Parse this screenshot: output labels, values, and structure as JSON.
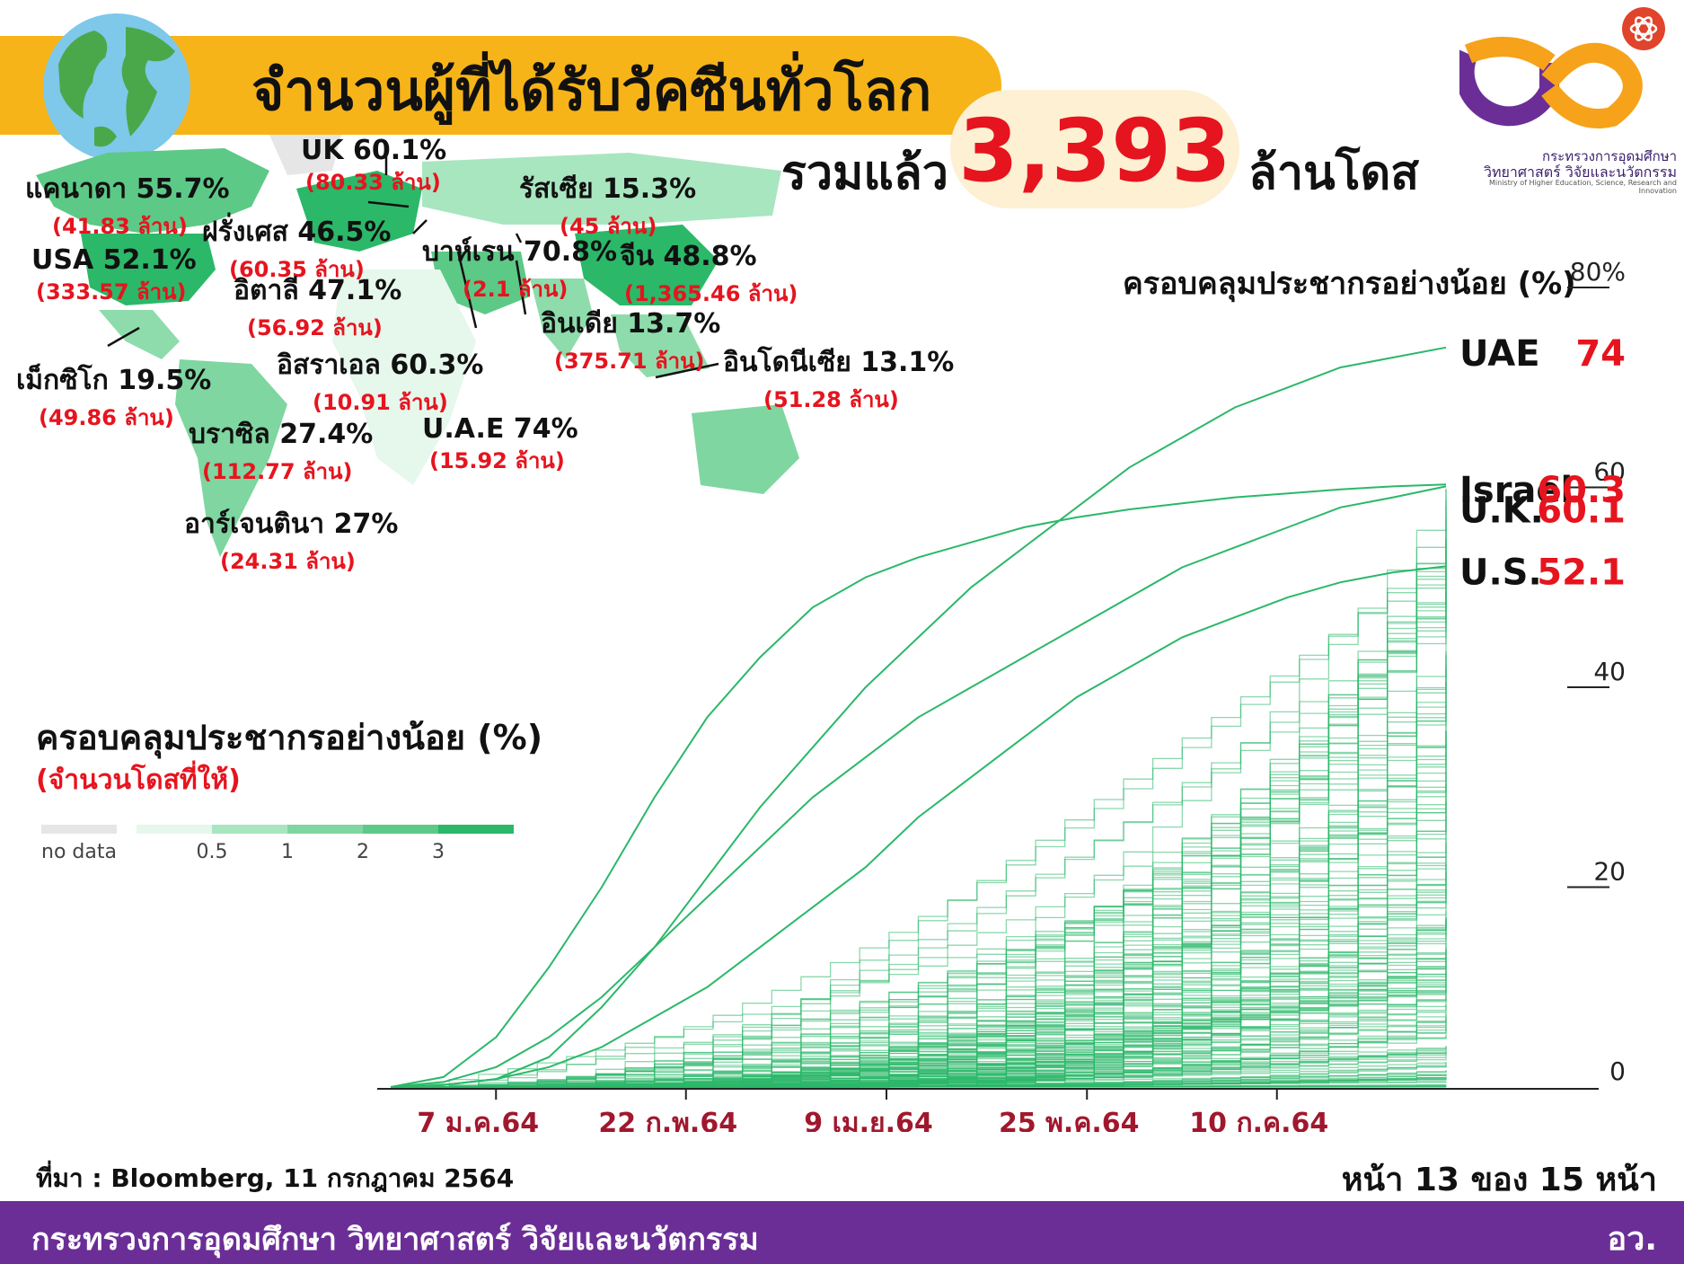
{
  "header": {
    "title": "จำนวนผู้ที่ได้รับวัคซีนทั่วโลก",
    "total_label": "รวมแล้ว",
    "total_value": "3,393",
    "total_unit": "ล้านโดส"
  },
  "logo": {
    "line1": "กระทรวงการอุดมศึกษา",
    "line2": "วิทยาศาสตร์ วิจัยและนวัตกรรม",
    "line3": "Ministry of Higher Education, Science, Research and Innovation"
  },
  "colors": {
    "banner": "#f7b418",
    "accent_red": "#e6141e",
    "line_green": "#2bb869",
    "footer_purple": "#6b2e97",
    "axis_date": "#a0182d"
  },
  "map_callouts": [
    {
      "name": "UK 60.1%",
      "doses": "(80.33 ล้าน)"
    },
    {
      "name": "แคนาดา 55.7%",
      "doses": "(41.83 ล้าน)"
    },
    {
      "name": "รัสเซีย 15.3%",
      "doses": "(45 ล้าน)"
    },
    {
      "name": "ฝรั่งเศส 46.5%",
      "doses": "(60.35 ล้าน)"
    },
    {
      "name": "USA 52.1%",
      "doses": "(333.57 ล้าน)"
    },
    {
      "name": "บาห์เรน 70.8%",
      "doses": "(2.1 ล้าน)"
    },
    {
      "name": "จีน 48.8%",
      "doses": "(1,365.46 ล้าน)"
    },
    {
      "name": "อิตาลี 47.1%",
      "doses": "(56.92 ล้าน)"
    },
    {
      "name": "อินเดีย 13.7%",
      "doses": "(375.71 ล้าน)"
    },
    {
      "name": "อิสราเอล 60.3%",
      "doses": "(10.91 ล้าน)"
    },
    {
      "name": "อินโดนีเซีย 13.1%",
      "doses": "(51.28 ล้าน)"
    },
    {
      "name": "เม็กซิโก 19.5%",
      "doses": "(49.86 ล้าน)"
    },
    {
      "name": "บราซิล 27.4%",
      "doses": "(112.77 ล้าน)"
    },
    {
      "name": "U.A.E 74%",
      "doses": "(15.92 ล้าน)"
    },
    {
      "name": "อาร์เจนตินา 27%",
      "doses": "(24.31 ล้าน)"
    }
  ],
  "legend": {
    "title": "ครอบคลุมประชากรอย่างน้อย (%)",
    "subtitle": "(จำนวนโดสที่ให้)",
    "no_data": "no data",
    "ticks": [
      "0.5",
      "1",
      "2",
      "3"
    ]
  },
  "coverage_label": "ครอบคลุมประชากรอย่างน้อย (%)",
  "chart_data": {
    "type": "line",
    "title": "ครอบคลุมประชากรอย่างน้อย (%)",
    "x_tick_labels": [
      "7 ม.ค.64",
      "22 ก.พ.64",
      "9 เม.ย.64",
      "25 พ.ค.64",
      "10 ก.ค.64"
    ],
    "y_tick_labels": [
      "80%",
      "60",
      "40",
      "20",
      "0"
    ],
    "ylim": [
      0,
      80
    ],
    "series": [
      {
        "name": "UAE",
        "end_value": "74",
        "values": [
          0,
          0.2,
          0.8,
          3,
          8,
          14,
          21,
          28,
          34,
          40,
          45,
          50,
          54,
          58,
          62,
          65,
          68,
          70,
          72,
          73,
          74
        ]
      },
      {
        "name": "Israel",
        "end_value": "60.3",
        "values": [
          0,
          1,
          5,
          12,
          20,
          29,
          37,
          43,
          48,
          51,
          53,
          54.5,
          56,
          57,
          57.8,
          58.4,
          59,
          59.4,
          59.8,
          60.1,
          60.3
        ]
      },
      {
        "name": "U.K.",
        "end_value": "60.1",
        "values": [
          0,
          0.5,
          2,
          5,
          9,
          14,
          19,
          24,
          29,
          33,
          37,
          40,
          43,
          46,
          49,
          52,
          54,
          56,
          58,
          59,
          60.1
        ]
      },
      {
        "name": "U.S.",
        "end_value": "52.1",
        "values": [
          0,
          0.2,
          0.8,
          2,
          4,
          7,
          10,
          14,
          18,
          22,
          27,
          31,
          35,
          39,
          42,
          45,
          47,
          49,
          50.5,
          51.5,
          52.1
        ]
      }
    ],
    "grid": false,
    "legend_position": "right"
  },
  "footer": {
    "source": "ที่มา : Bloomberg, 11 กรกฎาคม 2564",
    "page": "หน้า 13 ของ 15 หน้า",
    "ministry": "กระทรวงการอุดมศึกษา วิทยาศาสตร์ วิจัยและนวัตกรรม",
    "abbr": "อว."
  }
}
